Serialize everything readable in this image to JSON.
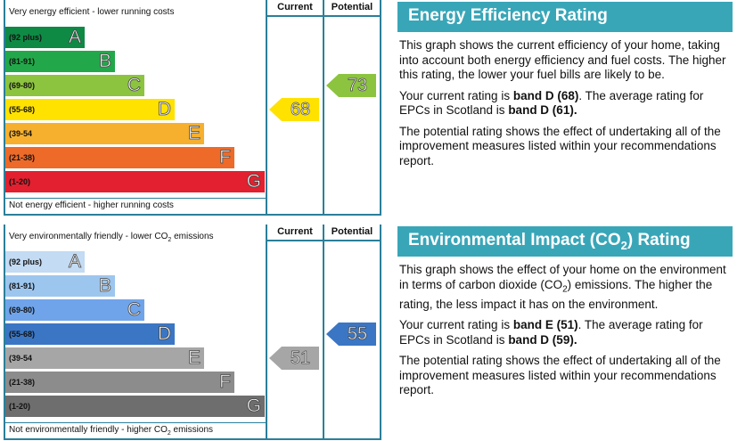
{
  "energy": {
    "top_label": "Very energy efficient - lower running costs",
    "bottom_label": "Not energy efficient - higher running costs",
    "col_current": "Current",
    "col_potential": "Potential",
    "bands": [
      {
        "range": "(92 plus)",
        "letter": "A",
        "color": "#0e8a45"
      },
      {
        "range": "(81-91)",
        "letter": "B",
        "color": "#22a84a"
      },
      {
        "range": "(69-80)",
        "letter": "C",
        "color": "#8cc43f"
      },
      {
        "range": "(55-68)",
        "letter": "D",
        "color": "#ffe200"
      },
      {
        "range": "(39-54",
        "letter": "E",
        "color": "#f6b02e"
      },
      {
        "range": "(21-38)",
        "letter": "F",
        "color": "#ee6a28"
      },
      {
        "range": "(1-20)",
        "letter": "G",
        "color": "#e2202f"
      }
    ],
    "current": {
      "value": "68",
      "band": "D",
      "color": "#ffe200"
    },
    "potential": {
      "value": "73",
      "band": "C",
      "color": "#8cc43f"
    }
  },
  "environment": {
    "top_label_pre": "Very environmentally friendly - lower CO",
    "top_label_sub": "2",
    "top_label_post": " emissions",
    "bottom_label_pre": "Not environmentally friendly - higher CO",
    "bottom_label_sub": "2",
    "bottom_label_post": " emissions",
    "col_current": "Current",
    "col_potential": "Potential",
    "bands": [
      {
        "range": "(92 plus)",
        "letter": "A",
        "color": "#c3dbf3"
      },
      {
        "range": "(81-91)",
        "letter": "B",
        "color": "#9dc6ee"
      },
      {
        "range": "(69-80)",
        "letter": "C",
        "color": "#6fa4ea"
      },
      {
        "range": "(55-68)",
        "letter": "D",
        "color": "#3a76c4"
      },
      {
        "range": "(39-54",
        "letter": "E",
        "color": "#a6a6a6"
      },
      {
        "range": "(21-38)",
        "letter": "F",
        "color": "#8c8c8c"
      },
      {
        "range": "(1-20)",
        "letter": "G",
        "color": "#6e6e6e"
      }
    ],
    "current": {
      "value": "51",
      "band": "E",
      "color": "#a6a6a6"
    },
    "potential": {
      "value": "55",
      "band": "D",
      "color": "#3a76c4"
    }
  },
  "energy_panel": {
    "heading": "Energy Efficiency Rating",
    "p1": "This graph shows the current efficiency of your home, taking into account both energy efficiency and fuel costs. The higher this rating, the lower your fuel bills are likely to be.",
    "p2_pre": "Your current rating is ",
    "p2_bold1": "band D (68)",
    "p2_mid": ". The average rating for EPCs in Scotland is ",
    "p2_bold2": "band D (61).",
    "p3": "The potential rating shows the effect of undertaking all of the improvement measures listed within your recommendations report."
  },
  "env_panel": {
    "heading_pre": "Environmental Impact (CO",
    "heading_sub": "2",
    "heading_post": ") Rating",
    "p1_pre": "This graph shows the effect of your home on the environment in terms of carbon dioxide (CO",
    "p1_sub": "2",
    "p1_post": ") emissions. The higher the rating, the less impact it has on the environment.",
    "p2_pre": "Your current rating is ",
    "p2_bold1": "band E (51)",
    "p2_mid": ". The average rating for EPCs in Scotland is ",
    "p2_bold2": "band D (59).",
    "p3": "The potential rating shows the effect of undertaking all of the improvement measures listed within your recommendations report."
  }
}
